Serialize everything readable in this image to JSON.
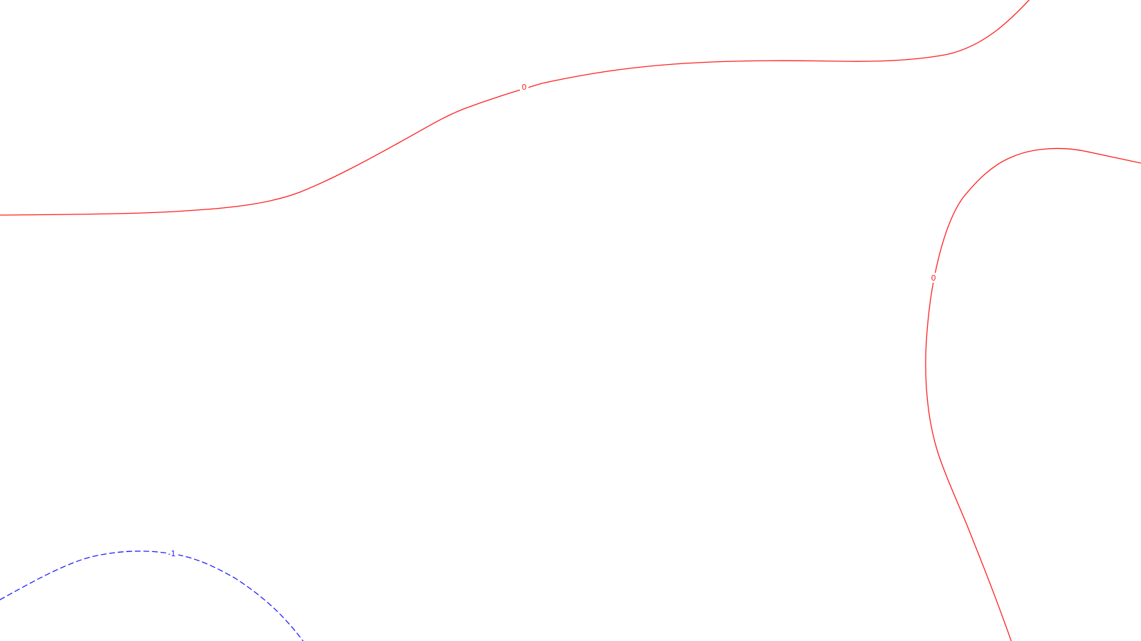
{
  "map": {
    "background": "#ffffff",
    "contours": [
      {
        "id": "zero-north",
        "level": "0",
        "style": "solid",
        "color": "#ff2020"
      },
      {
        "id": "zero-east",
        "level": "0",
        "style": "solid",
        "color": "#ff2020"
      },
      {
        "id": "minus-one-southwest",
        "level": "-1",
        "style": "dashed",
        "color": "#2020ff"
      }
    ]
  }
}
